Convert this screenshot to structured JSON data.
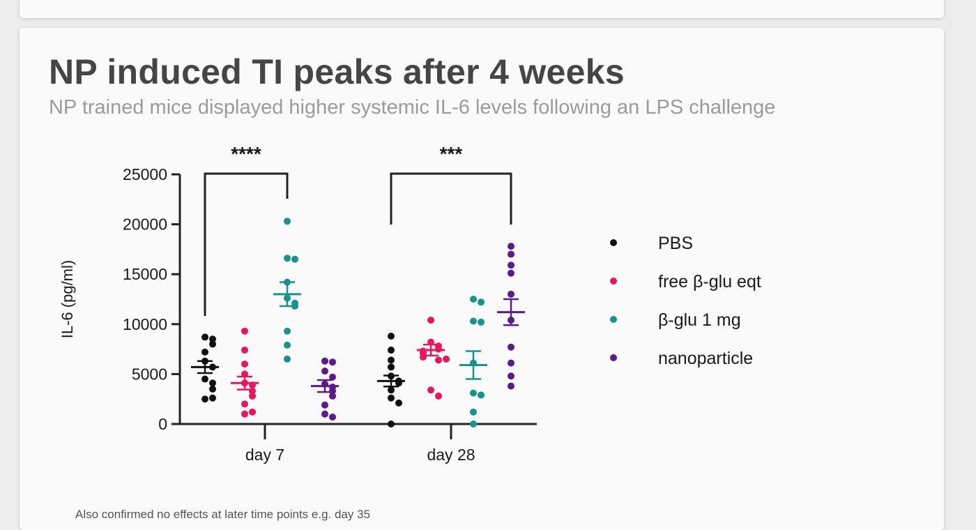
{
  "card": {
    "title": "NP induced TI peaks after 4 weeks",
    "subtitle": "NP trained mice displayed higher systemic IL-6 levels following an LPS challenge",
    "footnote": "Also confirmed no effects at later time points e.g. day 35"
  },
  "chart_data": {
    "type": "scatter",
    "title": "",
    "xlabel": "",
    "ylabel": "IL-6 (pg/ml)",
    "ylim": [
      0,
      25000
    ],
    "yticks": [
      0,
      5000,
      10000,
      15000,
      20000,
      25000
    ],
    "categories": [
      "day 7",
      "day 28"
    ],
    "legend_position": "right",
    "series": [
      {
        "name": "PBS",
        "color": "#111111",
        "mean": [
          5700,
          4300
        ],
        "sem": [
          600,
          550
        ],
        "points": [
          [
            8700,
            8500,
            8000,
            7200,
            6300,
            5700,
            4500,
            4100,
            3500,
            2500,
            2600
          ],
          [
            8800,
            7400,
            6400,
            5700,
            4800,
            4300,
            4100,
            3400,
            2600,
            2100,
            0
          ]
        ]
      },
      {
        "name": "free β-glu eqt",
        "color": "#e8175d",
        "mean": [
          4100,
          7400
        ],
        "sem": [
          650,
          550
        ],
        "points": [
          [
            9300,
            7400,
            6000,
            5000,
            4100,
            3900,
            3300,
            2800,
            2000,
            1000,
            1200
          ],
          [
            10400,
            8200,
            7800,
            7500,
            7300,
            7100,
            6700,
            6400,
            6500,
            3400,
            2800
          ]
        ]
      },
      {
        "name": "β-glu 1 mg",
        "color": "#19928f",
        "mean": [
          13000,
          5900
        ],
        "sem": [
          1200,
          1400
        ],
        "points": [
          [
            20300,
            16600,
            16500,
            14200,
            12600,
            12100,
            11800,
            9300,
            7900,
            6500
          ],
          [
            12500,
            12200,
            10300,
            10200,
            6100,
            3100,
            2900,
            1200,
            0
          ]
        ]
      },
      {
        "name": "nanoparticle",
        "color": "#5c1a8c",
        "mean": [
          3800,
          11200
        ],
        "sem": [
          600,
          1300
        ],
        "points": [
          [
            6300,
            6200,
            5300,
            4700,
            4000,
            3700,
            3300,
            2800,
            1900,
            1000,
            700
          ],
          [
            17800,
            17000,
            15900,
            15100,
            13000,
            10400,
            7700,
            6100,
            4800,
            3800
          ]
        ]
      }
    ],
    "significance": [
      {
        "label": "****",
        "category": "day 7",
        "from_series": "PBS",
        "to_series": "β-glu 1 mg"
      },
      {
        "label": "***",
        "category": "day 28",
        "from_series": "PBS",
        "to_series": "nanoparticle"
      }
    ]
  }
}
